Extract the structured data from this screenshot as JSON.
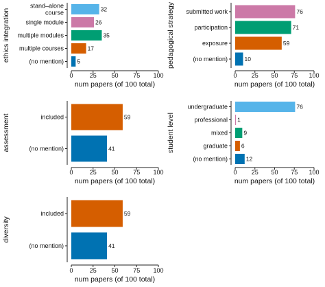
{
  "colors": {
    "sky_blue": "#56B4E9",
    "pink": "#CC79A7",
    "green": "#009E73",
    "orange": "#D55E00",
    "blue": "#0072B2"
  },
  "chart_data": [
    {
      "type": "bar",
      "orientation": "horizontal",
      "ylabel": "ethics integration",
      "xlabel": "num papers (of 100 total)",
      "xlim": [
        0,
        100
      ],
      "xticks": [
        0,
        25,
        50,
        75,
        100
      ],
      "grid": false,
      "categories": [
        "stand–alone course",
        "single module",
        "multiple modules",
        "multiple courses",
        "(no mention)"
      ],
      "values": [
        32,
        26,
        35,
        17,
        5
      ],
      "colors": [
        "#56B4E9",
        "#CC79A7",
        "#009E73",
        "#D55E00",
        "#0072B2"
      ]
    },
    {
      "type": "bar",
      "orientation": "horizontal",
      "ylabel": "pedagogical strategy",
      "xlabel": "num papers (of 100 total)",
      "xlim": [
        0,
        100
      ],
      "xticks": [
        0,
        25,
        50,
        75,
        100
      ],
      "grid": false,
      "categories": [
        "submitted work",
        "participation",
        "exposure",
        "(no mention)"
      ],
      "values": [
        76,
        71,
        59,
        10
      ],
      "colors": [
        "#CC79A7",
        "#009E73",
        "#D55E00",
        "#0072B2"
      ]
    },
    {
      "type": "bar",
      "orientation": "horizontal",
      "ylabel": "assessment",
      "xlabel": "num papers (of 100 total)",
      "xlim": [
        0,
        100
      ],
      "xticks": [
        0,
        25,
        50,
        75,
        100
      ],
      "grid": false,
      "categories": [
        "included",
        "(no mention)"
      ],
      "values": [
        59,
        41
      ],
      "colors": [
        "#D55E00",
        "#0072B2"
      ]
    },
    {
      "type": "bar",
      "orientation": "horizontal",
      "ylabel": "student level",
      "xlabel": "num papers (of 100 total)",
      "xlim": [
        0,
        100
      ],
      "xticks": [
        0,
        25,
        50,
        75,
        100
      ],
      "grid": false,
      "categories": [
        "undergraduate",
        "professional",
        "mixed",
        "graduate",
        "(no mention)"
      ],
      "values": [
        76,
        1,
        9,
        6,
        12
      ],
      "colors": [
        "#56B4E9",
        "#CC79A7",
        "#009E73",
        "#D55E00",
        "#0072B2"
      ]
    },
    {
      "type": "bar",
      "orientation": "horizontal",
      "ylabel": "diversity",
      "xlabel": "num papers (of 100 total)",
      "xlim": [
        0,
        100
      ],
      "xticks": [
        0,
        25,
        50,
        75,
        100
      ],
      "grid": false,
      "categories": [
        "included",
        "(no mention)"
      ],
      "values": [
        59,
        41
      ],
      "colors": [
        "#D55E00",
        "#0072B2"
      ]
    }
  ]
}
